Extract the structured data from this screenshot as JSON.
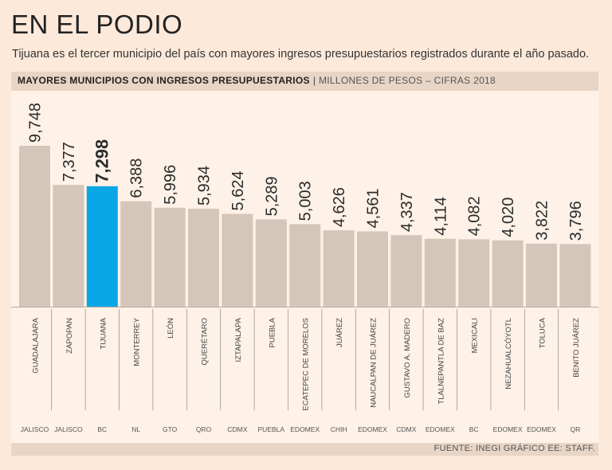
{
  "header": {
    "title": "EN EL PODIO",
    "subtitle": "Tijuana es el tercer municipio del país con mayores ingresos presupuestarios registrados durante el año pasado.",
    "chart_heading": "MAYORES MUNICIPIOS CON INGRESOS PRESUPUESTARIOS",
    "separator": "|",
    "chart_units": "MILLONES DE PESOS – CIFRAS 2018"
  },
  "footer": {
    "source": "FUENTE: INEGI GRÁFICO EE: STAFF."
  },
  "colors": {
    "bar": "#d4c7b9",
    "highlight": "#0aa7e6",
    "panel": "#fef1e7",
    "band": "#e9d5c5"
  },
  "chart_data": {
    "type": "bar",
    "title": "MAYORES MUNICIPIOS CON INGRESOS PRESUPUESTARIOS",
    "ylabel": "MILLONES DE PESOS – CIFRAS 2018",
    "xlabel": "",
    "ylim": [
      0,
      9748
    ],
    "grid": false,
    "highlight_index": 2,
    "value_labels": [
      "9,748",
      "7,377",
      "7,298",
      "6,388",
      "5,996",
      "5,934",
      "5,624",
      "5,289",
      "5,003",
      "4,626",
      "4,561",
      "4,337",
      "4,114",
      "4,082",
      "4,020",
      "3,822",
      "3,796"
    ],
    "categories": [
      "GUADALAJARA",
      "ZAPOPAN",
      "TIJUANA",
      "MONTERREY",
      "LEÓN",
      "QUERÉTARO",
      "IZTAPALAPA",
      "PUEBLA",
      "ECATEPEC DE MORELOS",
      "JUÁREZ",
      "NAUCALPAN DE JUÁREZ",
      "GUSTAVO A. MADERO",
      "TLALNEPANTLA DE BAZ",
      "MEXICALI",
      "NEZAHUALCÓYOTL",
      "TOLUCA",
      "BENITO JUÁREZ"
    ],
    "states": [
      "JALISCO",
      "JALISCO",
      "BC",
      "NL",
      "GTO",
      "QRO",
      "CDMX",
      "PUEBLA",
      "EDOMEX",
      "CHIH",
      "EDOMEX",
      "CDMX",
      "EDOMEX",
      "BC",
      "EDOMEX",
      "EDOMEX",
      "QR"
    ],
    "values": [
      9748,
      7377,
      7298,
      6388,
      5996,
      5934,
      5624,
      5289,
      5003,
      4626,
      4561,
      4337,
      4114,
      4082,
      4020,
      3822,
      3796
    ]
  }
}
